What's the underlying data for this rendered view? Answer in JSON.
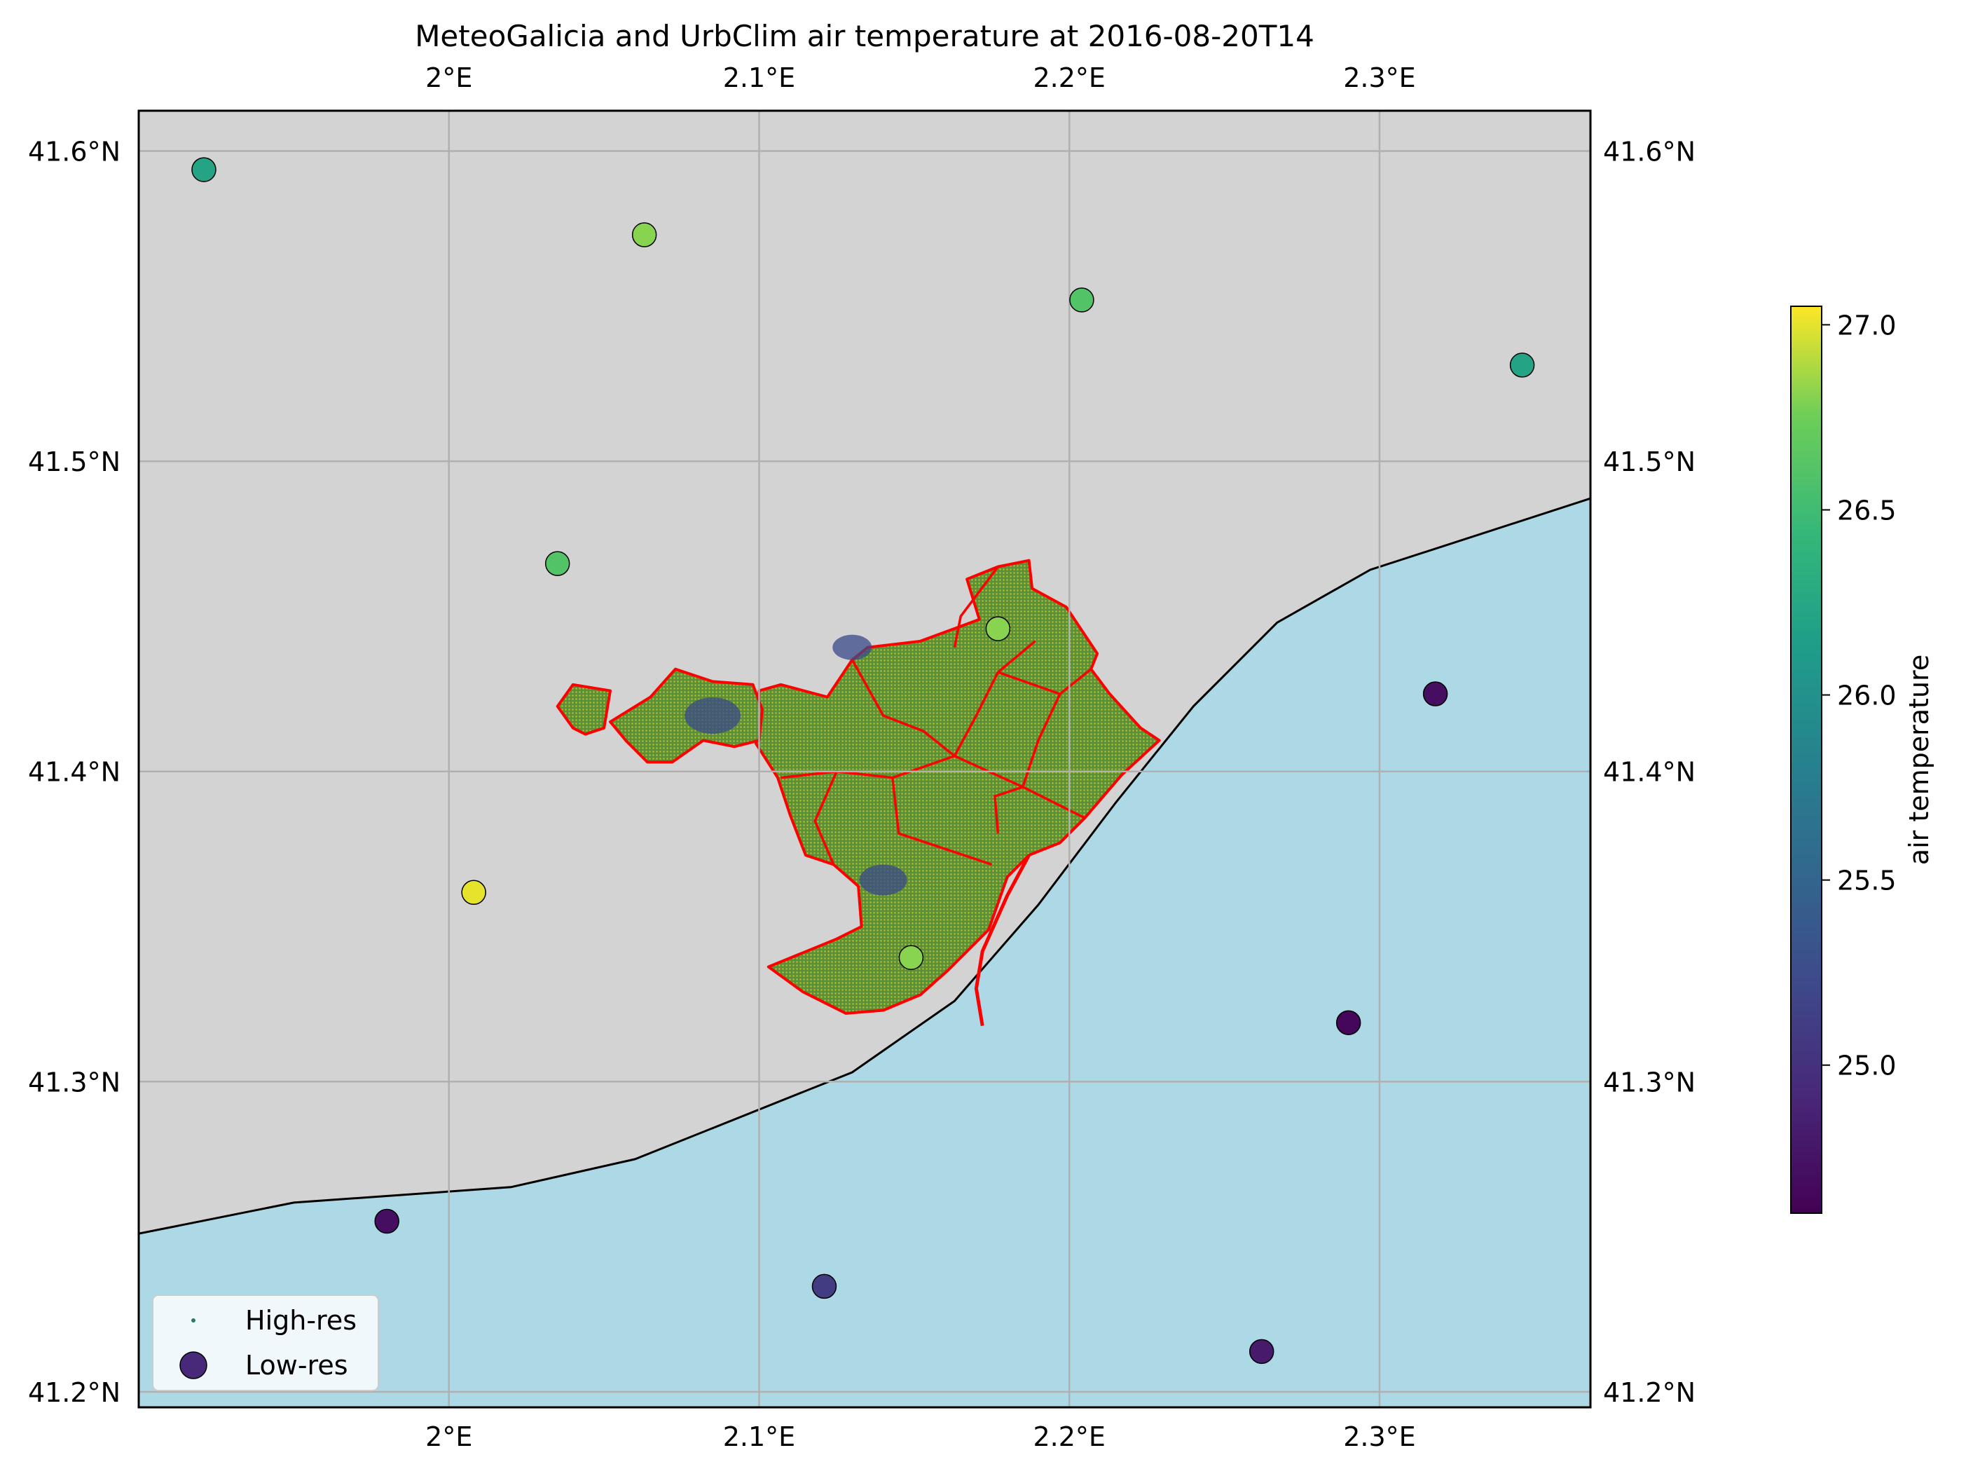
{
  "title": "MeteoGalicia and UrbClim air temperature at 2016-08-20T14",
  "colors": {
    "land": "#d3d3d3",
    "sea": "#add8e6",
    "district_border": "#ff0000",
    "grid": "#b0b0b0",
    "coastline": "#000000"
  },
  "chart_data": {
    "type": "scatter",
    "extent": {
      "lon": [
        1.9,
        2.368
      ],
      "lat": [
        41.195,
        41.613
      ]
    },
    "lon_ticks": [
      2.0,
      2.1,
      2.2,
      2.3
    ],
    "lon_tick_labels": [
      "2°E",
      "2.1°E",
      "2.2°E",
      "2.3°E"
    ],
    "lat_ticks": [
      41.2,
      41.3,
      41.4,
      41.5,
      41.6
    ],
    "lat_tick_labels": [
      "41.2°N",
      "41.3°N",
      "41.4°N",
      "41.5°N",
      "41.6°N"
    ],
    "grid": true,
    "colormap": "viridis",
    "colorbar": {
      "label": "air temperature",
      "range": [
        24.6,
        27.05
      ],
      "ticks": [
        25.0,
        25.5,
        26.0,
        26.5,
        27.0
      ],
      "tick_labels": [
        "25.0",
        "25.5",
        "26.0",
        "26.5",
        "27.0"
      ]
    },
    "legend": {
      "position": "lower-left",
      "entries": [
        {
          "label": "High-res",
          "marker": "small-dot"
        },
        {
          "label": "Low-res",
          "marker": "large-circle"
        }
      ]
    },
    "coastline": [
      [
        1.9,
        41.251
      ],
      [
        1.95,
        41.261
      ],
      [
        2.02,
        41.266
      ],
      [
        2.06,
        41.275
      ],
      [
        2.13,
        41.303
      ],
      [
        2.163,
        41.326
      ],
      [
        2.19,
        41.357
      ],
      [
        2.215,
        41.39
      ],
      [
        2.24,
        41.421
      ],
      [
        2.267,
        41.448
      ],
      [
        2.297,
        41.465
      ],
      [
        2.368,
        41.488
      ]
    ],
    "low_res_points": [
      {
        "lon": 1.921,
        "lat": 41.594,
        "value": 26.2
      },
      {
        "lon": 2.063,
        "lat": 41.573,
        "value": 26.8
      },
      {
        "lon": 2.204,
        "lat": 41.552,
        "value": 26.6
      },
      {
        "lon": 2.346,
        "lat": 41.531,
        "value": 26.2
      },
      {
        "lon": 2.035,
        "lat": 41.467,
        "value": 26.6
      },
      {
        "lon": 2.177,
        "lat": 41.446,
        "value": 26.8
      },
      {
        "lon": 2.318,
        "lat": 41.425,
        "value": 24.7
      },
      {
        "lon": 2.008,
        "lat": 41.361,
        "value": 27.0
      },
      {
        "lon": 2.149,
        "lat": 41.34,
        "value": 26.8
      },
      {
        "lon": 2.29,
        "lat": 41.319,
        "value": 24.65
      },
      {
        "lon": 1.98,
        "lat": 41.255,
        "value": 24.7
      },
      {
        "lon": 2.121,
        "lat": 41.234,
        "value": 25.1
      },
      {
        "lon": 2.262,
        "lat": 41.213,
        "value": 24.8
      }
    ],
    "high_res_area": {
      "boundary": [
        [
          2.106,
          41.398
        ],
        [
          2.099,
          41.409
        ],
        [
          2.1,
          41.426
        ],
        [
          2.107,
          41.428
        ],
        [
          2.122,
          41.424
        ],
        [
          2.13,
          41.436
        ],
        [
          2.135,
          41.44
        ],
        [
          2.152,
          41.442
        ],
        [
          2.171,
          41.449
        ],
        [
          2.167,
          41.462
        ],
        [
          2.177,
          41.466
        ],
        [
          2.187,
          41.468
        ],
        [
          2.188,
          41.459
        ],
        [
          2.199,
          41.453
        ],
        [
          2.209,
          41.438
        ],
        [
          2.207,
          41.433
        ],
        [
          2.213,
          41.425
        ],
        [
          2.223,
          41.414
        ],
        [
          2.229,
          41.41
        ],
        [
          2.217,
          41.399
        ],
        [
          2.205,
          41.385
        ],
        [
          2.197,
          41.377
        ],
        [
          2.187,
          41.373
        ],
        [
          2.18,
          41.366
        ],
        [
          2.174,
          41.349
        ],
        [
          2.161,
          41.336
        ],
        [
          2.152,
          41.328
        ],
        [
          2.14,
          41.323
        ],
        [
          2.128,
          41.322
        ],
        [
          2.114,
          41.329
        ],
        [
          2.103,
          41.337
        ],
        [
          2.125,
          41.346
        ],
        [
          2.133,
          41.35
        ],
        [
          2.132,
          41.363
        ],
        [
          2.124,
          41.37
        ],
        [
          2.115,
          41.373
        ],
        [
          2.11,
          41.386
        ]
      ],
      "exclave": [
        [
          2.052,
          41.416
        ],
        [
          2.065,
          41.424
        ],
        [
          2.073,
          41.433
        ],
        [
          2.085,
          41.429
        ],
        [
          2.098,
          41.428
        ],
        [
          2.101,
          41.42
        ],
        [
          2.1,
          41.41
        ],
        [
          2.092,
          41.408
        ],
        [
          2.082,
          41.41
        ],
        [
          2.072,
          41.403
        ],
        [
          2.064,
          41.403
        ],
        [
          2.057,
          41.41
        ]
      ],
      "islet": [
        [
          2.04,
          41.428
        ],
        [
          2.052,
          41.426
        ],
        [
          2.05,
          41.414
        ],
        [
          2.044,
          41.412
        ],
        [
          2.04,
          41.414
        ],
        [
          2.035,
          41.421
        ]
      ]
    }
  }
}
